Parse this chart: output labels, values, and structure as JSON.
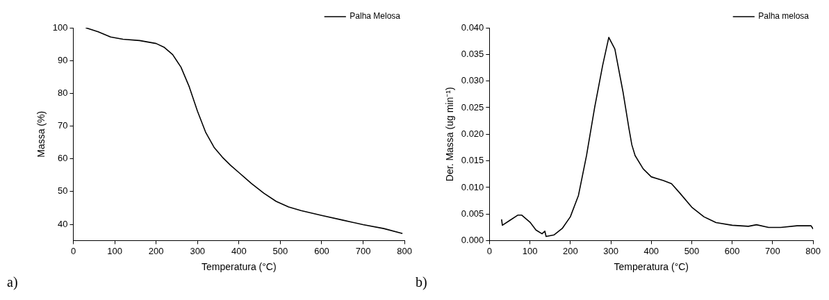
{
  "chart_data": [
    {
      "type": "line",
      "xlabel": "Temperatura (°C)",
      "ylabel": "Massa (%)",
      "annotations": [
        "a)"
      ],
      "legend": "top right",
      "grid": false,
      "marker": "none",
      "line_style": "solid",
      "xlim": [
        0,
        800
      ],
      "xticks": [
        0,
        100,
        200,
        300,
        400,
        500,
        600,
        700,
        800
      ],
      "ylim": [
        35,
        100
      ],
      "yticks": [
        40,
        50,
        60,
        70,
        80,
        90,
        100
      ],
      "x": [
        30,
        60,
        90,
        120,
        160,
        200,
        220,
        240,
        260,
        280,
        300,
        320,
        340,
        360,
        380,
        400,
        430,
        460,
        490,
        520,
        550,
        600,
        650,
        700,
        750,
        795
      ],
      "series": [
        {
          "name": "Palha Melosa",
          "color": "#000000",
          "values": [
            100,
            98.8,
            97.2,
            96.5,
            96.1,
            95.2,
            94,
            91.8,
            88,
            82,
            74.5,
            68,
            63.5,
            60.5,
            58,
            55.8,
            52.5,
            49.5,
            47,
            45.3,
            44.2,
            42.7,
            41.3,
            39.9,
            38.7,
            37.2
          ]
        }
      ]
    },
    {
      "type": "line",
      "xlabel": "Temperatura (°C)",
      "ylabel": "Der. Massa (ug min⁻¹)",
      "annotations": [
        "b)"
      ],
      "legend": "top right",
      "grid": false,
      "marker": "none",
      "line_style": "solid",
      "xlim": [
        0,
        800
      ],
      "xticks": [
        0,
        100,
        200,
        300,
        400,
        500,
        600,
        700,
        800
      ],
      "ylim": [
        0,
        0.04
      ],
      "yticks": [
        {
          "value": 0,
          "label": "0.000"
        },
        {
          "value": 0.005,
          "label": "0.005"
        },
        {
          "value": 0.01,
          "label": "0.010"
        },
        {
          "value": 0.015,
          "label": "0.015"
        },
        {
          "value": 0.02,
          "label": "0.020"
        },
        {
          "value": 0.025,
          "label": "0.025"
        },
        {
          "value": 0.03,
          "label": "0.030"
        },
        {
          "value": 0.035,
          "label": "0.035"
        },
        {
          "value": 0.04,
          "label": "0.040"
        }
      ],
      "x": [
        30,
        32,
        50,
        70,
        80,
        100,
        115,
        130,
        137,
        140,
        160,
        180,
        200,
        220,
        240,
        260,
        280,
        295,
        310,
        330,
        345,
        352,
        360,
        380,
        400,
        430,
        450,
        470,
        500,
        530,
        560,
        600,
        640,
        660,
        690,
        720,
        760,
        795,
        800
      ],
      "series": [
        {
          "name": "Palha melosa",
          "color": "#000000",
          "values": [
            0.004,
            0.0029,
            0.0038,
            0.0048,
            0.0048,
            0.0035,
            0.002,
            0.0013,
            0.0018,
            0.0008,
            0.0011,
            0.0023,
            0.0045,
            0.0085,
            0.016,
            0.025,
            0.033,
            0.0382,
            0.036,
            0.028,
            0.021,
            0.018,
            0.016,
            0.0135,
            0.012,
            0.0113,
            0.0107,
            0.009,
            0.0063,
            0.0045,
            0.0034,
            0.0029,
            0.0027,
            0.003,
            0.0025,
            0.0025,
            0.0028,
            0.0028,
            0.0022
          ]
        }
      ]
    }
  ]
}
